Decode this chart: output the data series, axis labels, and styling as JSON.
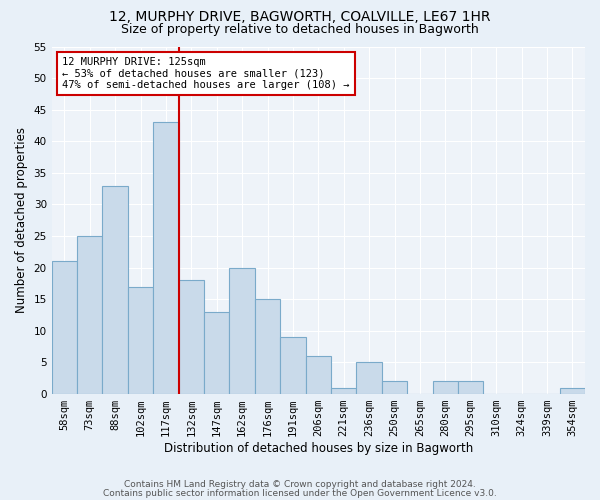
{
  "title1": "12, MURPHY DRIVE, BAGWORTH, COALVILLE, LE67 1HR",
  "title2": "Size of property relative to detached houses in Bagworth",
  "xlabel": "Distribution of detached houses by size in Bagworth",
  "ylabel": "Number of detached properties",
  "categories": [
    "58sqm",
    "73sqm",
    "88sqm",
    "102sqm",
    "117sqm",
    "132sqm",
    "147sqm",
    "162sqm",
    "176sqm",
    "191sqm",
    "206sqm",
    "221sqm",
    "236sqm",
    "250sqm",
    "265sqm",
    "280sqm",
    "295sqm",
    "310sqm",
    "324sqm",
    "339sqm",
    "354sqm"
  ],
  "values": [
    21,
    25,
    33,
    17,
    43,
    18,
    13,
    20,
    15,
    9,
    6,
    1,
    5,
    2,
    0,
    2,
    2,
    0,
    0,
    0,
    1
  ],
  "bar_color": "#c9daea",
  "bar_edge_color": "#7aaaca",
  "annotation_line1": "12 MURPHY DRIVE: 125sqm",
  "annotation_line2": "← 53% of detached houses are smaller (123)",
  "annotation_line3": "47% of semi-detached houses are larger (108) →",
  "annotation_box_color": "#ffffff",
  "annotation_box_edge": "#cc0000",
  "vline_color": "#cc0000",
  "vline_x": 4.5,
  "ylim": [
    0,
    55
  ],
  "yticks": [
    0,
    5,
    10,
    15,
    20,
    25,
    30,
    35,
    40,
    45,
    50,
    55
  ],
  "footer1": "Contains HM Land Registry data © Crown copyright and database right 2024.",
  "footer2": "Contains public sector information licensed under the Open Government Licence v3.0.",
  "bg_color": "#e8f0f8",
  "plot_bg_color": "#eef3f9"
}
